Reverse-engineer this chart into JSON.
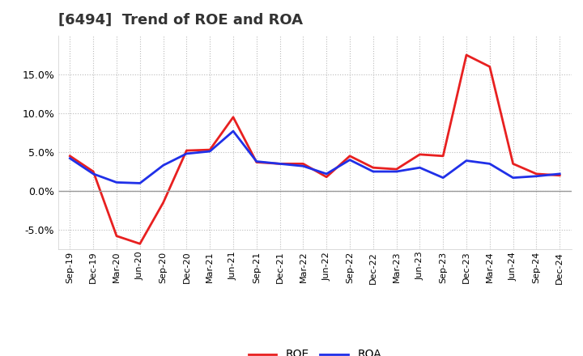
{
  "title": "[6494]  Trend of ROE and ROA",
  "x_labels": [
    "Sep-19",
    "Dec-19",
    "Mar-20",
    "Jun-20",
    "Sep-20",
    "Dec-20",
    "Mar-21",
    "Jun-21",
    "Sep-21",
    "Dec-21",
    "Mar-22",
    "Jun-22",
    "Sep-22",
    "Dec-22",
    "Mar-23",
    "Jun-23",
    "Sep-23",
    "Dec-23",
    "Mar-24",
    "Jun-24",
    "Sep-24",
    "Dec-24"
  ],
  "roe": [
    4.5,
    2.5,
    -5.8,
    -6.8,
    -1.5,
    5.2,
    5.3,
    9.5,
    3.7,
    3.5,
    3.5,
    1.8,
    4.5,
    3.0,
    2.8,
    4.7,
    4.5,
    17.5,
    16.0,
    3.5,
    2.2,
    2.0
  ],
  "roa": [
    4.2,
    2.2,
    1.1,
    1.0,
    3.3,
    4.8,
    5.1,
    7.7,
    3.8,
    3.5,
    3.2,
    2.2,
    4.0,
    2.5,
    2.5,
    3.0,
    1.7,
    3.9,
    3.5,
    1.7,
    1.9,
    2.2
  ],
  "roe_color": "#e82020",
  "roa_color": "#2030e8",
  "ylim": [
    -7.5,
    20.0
  ],
  "yticks": [
    -5.0,
    0.0,
    5.0,
    10.0,
    15.0
  ],
  "bg_color": "#ffffff",
  "plot_bg_color": "#ffffff",
  "grid_color": "#bbbbbb",
  "title_fontsize": 13,
  "line_width": 2.0
}
